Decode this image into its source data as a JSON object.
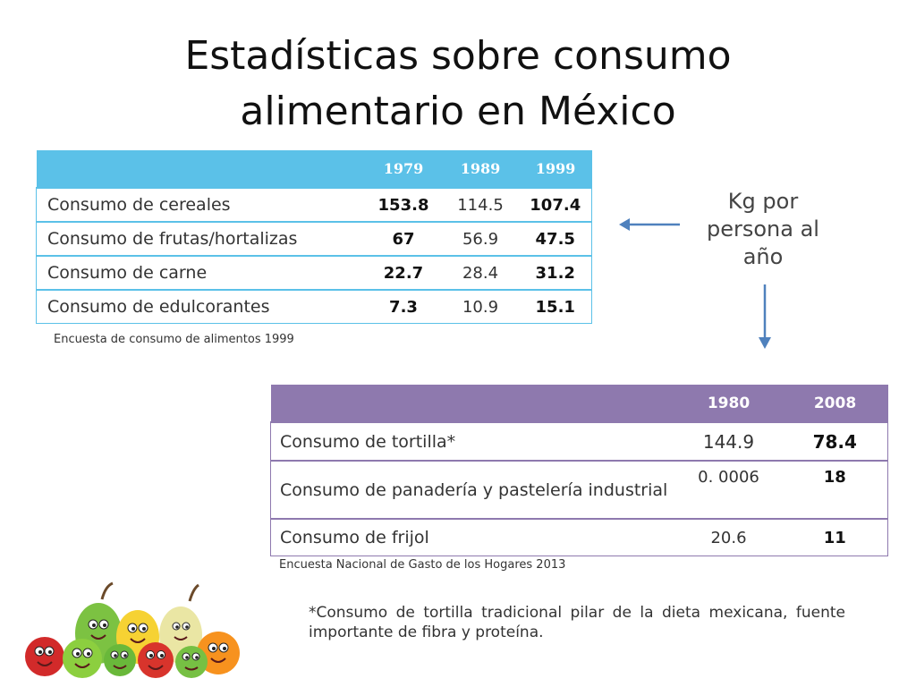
{
  "title": {
    "line1": "Estadísticas sobre consumo",
    "line2": "alimentario en México"
  },
  "table1": {
    "headers": [
      "",
      "1979",
      "1989",
      "1999"
    ],
    "header_color": "#5bc1e8",
    "rows": [
      {
        "label": "Consumo de cereales",
        "values": [
          "153.8",
          "114.5",
          "107.4"
        ]
      },
      {
        "label": "Consumo de frutas/hortalizas",
        "values": [
          "67",
          "56.9",
          "47.5"
        ]
      },
      {
        "label": "Consumo de carne",
        "values": [
          "22.7",
          "28.4",
          "31.2"
        ]
      },
      {
        "label": "Consumo de edulcorantes",
        "values": [
          "7.3",
          "10.9",
          "15.1"
        ]
      }
    ],
    "source": "Encuesta de consumo de alimentos 1999"
  },
  "annotation": {
    "line1": "Kg por",
    "line2": "persona al",
    "line3": "año",
    "arrow_color": "#4f81bd"
  },
  "table2": {
    "headers": [
      "",
      "1980",
      "2008"
    ],
    "header_color": "#8e79ae",
    "rows": [
      {
        "label": "Consumo de tortilla*",
        "values": [
          "144.9",
          "78.4"
        ]
      },
      {
        "label": "Consumo de panadería y pastelería industrial",
        "values": [
          "0. 0006",
          "18"
        ]
      },
      {
        "label": "Consumo de frijol",
        "values": [
          "20.6",
          "11"
        ]
      }
    ],
    "source": "Encuesta Nacional de Gasto de los Hogares 2013"
  },
  "footnote": "*Consumo de tortilla tradicional pilar de la dieta mexicana, fuente importante de fibra y proteína.",
  "illustration": "cartoon-fruits-icon"
}
